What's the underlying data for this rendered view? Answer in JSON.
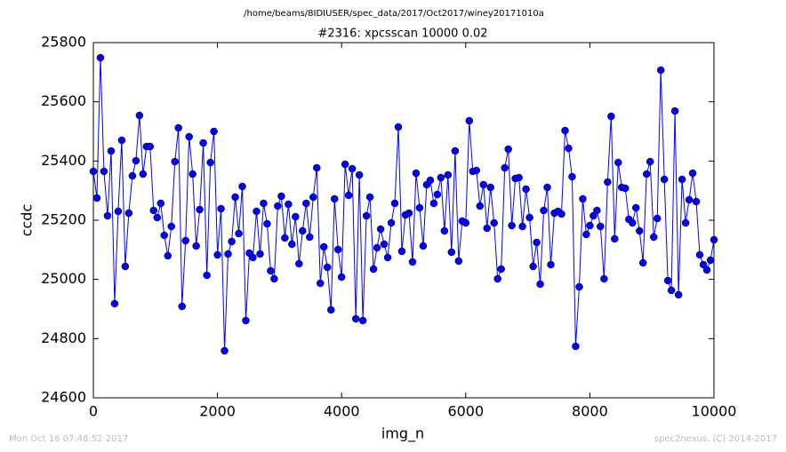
{
  "chart_data": {
    "type": "line",
    "suptitle": "/home/beams/8IDIUSER/spec_data/2017/Oct2017/winey20171010a",
    "title": "#2316: xpcsscan 10000 0.02",
    "xlabel": "img_n",
    "ylabel": "ccdc",
    "annotations": [
      "Mon Oct 16 07:48:52 2017",
      "spec2nexus, (C) 2014-2017"
    ],
    "color": "#0000ff",
    "marker": "circle",
    "xlim": [
      0,
      10000
    ],
    "xticks": [
      0,
      2000,
      4000,
      6000,
      8000,
      10000
    ],
    "ylim": [
      24600,
      25800
    ],
    "yticks": [
      24600,
      24800,
      25000,
      25200,
      25400,
      25600,
      25800
    ],
    "grid": false,
    "x": [
      0,
      57,
      114,
      171,
      229,
      286,
      343,
      400,
      457,
      514,
      571,
      629,
      686,
      743,
      800,
      857,
      914,
      971,
      1029,
      1086,
      1143,
      1200,
      1257,
      1314,
      1371,
      1429,
      1486,
      1543,
      1600,
      1657,
      1714,
      1771,
      1829,
      1886,
      1943,
      2000,
      2057,
      2114,
      2171,
      2229,
      2286,
      2343,
      2400,
      2457,
      2514,
      2571,
      2629,
      2686,
      2743,
      2800,
      2857,
      2914,
      2971,
      3029,
      3086,
      3143,
      3200,
      3257,
      3314,
      3371,
      3429,
      3486,
      3543,
      3600,
      3657,
      3714,
      3771,
      3829,
      3886,
      3943,
      4000,
      4057,
      4114,
      4171,
      4229,
      4286,
      4343,
      4400,
      4457,
      4514,
      4571,
      4629,
      4686,
      4743,
      4800,
      4857,
      4914,
      4971,
      5029,
      5086,
      5143,
      5200,
      5257,
      5314,
      5371,
      5429,
      5486,
      5543,
      5600,
      5657,
      5714,
      5771,
      5829,
      5886,
      5943,
      6000,
      6057,
      6114,
      6171,
      6229,
      6286,
      6343,
      6400,
      6457,
      6514,
      6571,
      6629,
      6686,
      6743,
      6800,
      6857,
      6914,
      6971,
      7029,
      7086,
      7143,
      7200,
      7257,
      7314,
      7371,
      7429,
      7486,
      7543,
      7600,
      7657,
      7714,
      7771,
      7829,
      7886,
      7943,
      8000,
      8057,
      8114,
      8171,
      8229,
      8286,
      8343,
      8400,
      8457,
      8514,
      8571,
      8629,
      8686,
      8743,
      8800,
      8857,
      8914,
      8971,
      9029,
      9086,
      9143,
      9200,
      9257,
      9314,
      9371,
      9429,
      9486,
      9543,
      9600,
      9657,
      9714,
      9771,
      9829,
      9886,
      9943,
      10000
    ],
    "values": [
      25365,
      25275,
      25749,
      25365,
      25215,
      25434,
      24918,
      25230,
      25470,
      25044,
      25224,
      25350,
      25401,
      25554,
      25356,
      25449,
      25449,
      25233,
      25209,
      25257,
      25149,
      25080,
      25179,
      25398,
      25512,
      24909,
      25131,
      25482,
      25356,
      25113,
      25236,
      25461,
      25014,
      25395,
      25500,
      25083,
      25239,
      24759,
      25086,
      25128,
      25278,
      25155,
      25314,
      24861,
      25089,
      25074,
      25230,
      25086,
      25257,
      25188,
      25029,
      25002,
      25248,
      25281,
      25140,
      25254,
      25119,
      25212,
      25053,
      25164,
      25257,
      25143,
      25278,
      25377,
      24987,
      25110,
      25041,
      24897,
      25272,
      25101,
      25008,
      25389,
      25284,
      25374,
      24867,
      25353,
      24861,
      25215,
      25278,
      25035,
      25107,
      25170,
      25119,
      25074,
      25191,
      25257,
      25515,
      25095,
      25218,
      25224,
      25059,
      25359,
      25242,
      25113,
      25320,
      25335,
      25257,
      25287,
      25344,
      25164,
      25353,
      25092,
      25434,
      25062,
      25197,
      25191,
      25536,
      25365,
      25368,
      25248,
      25320,
      25173,
      25311,
      25191,
      25002,
      25035,
      25377,
      25440,
      25182,
      25341,
      25344,
      25179,
      25305,
      25209,
      25044,
      25125,
      24984,
      25233,
      25311,
      25050,
      25224,
      25230,
      25221,
      25503,
      25443,
      25347,
      24774,
      24975,
      25272,
      25152,
      25182,
      25215,
      25233,
      25179,
      25002,
      25329,
      25551,
      25137,
      25395,
      25311,
      25308,
      25203,
      25191,
      25242,
      25164,
      25056,
      25356,
      25398,
      25143,
      25206,
      25707,
      25338,
      24996,
      24963,
      25569,
      24948,
      25338,
      25191,
      25269,
      25359,
      25263,
      25083,
      25050,
      25032,
      25065,
      25134
    ]
  }
}
